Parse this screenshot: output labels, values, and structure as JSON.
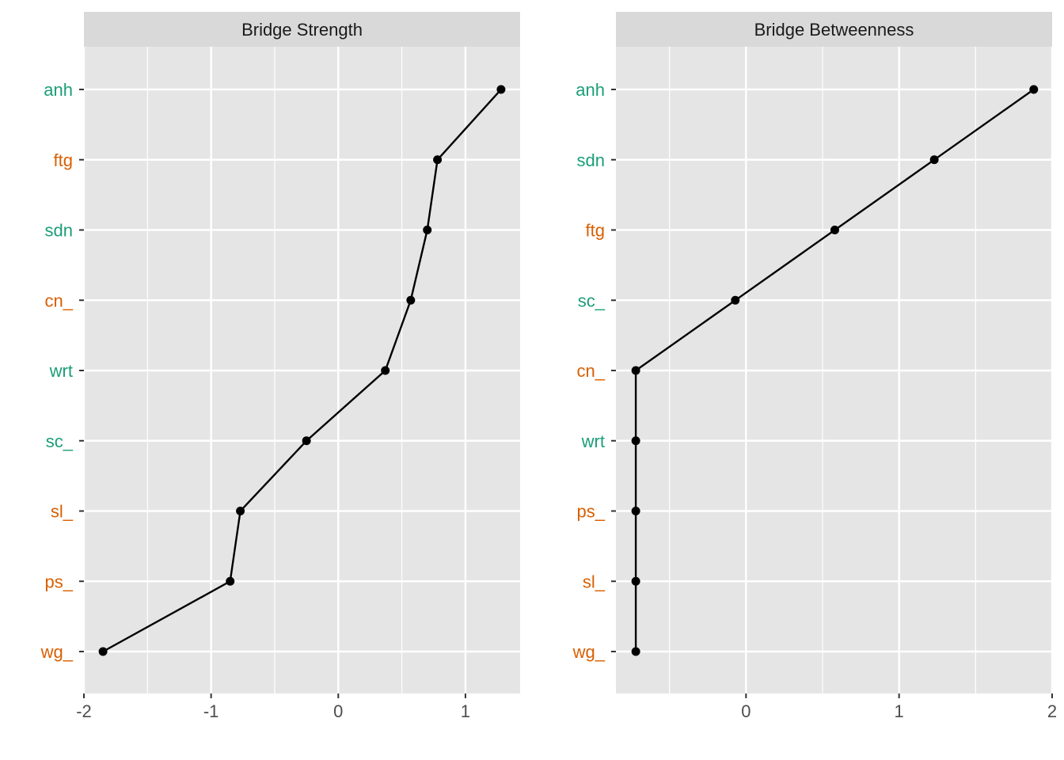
{
  "chart_data": [
    {
      "type": "line",
      "title": "Bridge Strength",
      "categories": [
        "anh",
        "ftg",
        "sdn",
        "cn_",
        "wrt",
        "sc_",
        "sl_",
        "ps_",
        "wg_"
      ],
      "category_colors": [
        "#1b9e77",
        "#d95f02",
        "#1b9e77",
        "#d95f02",
        "#1b9e77",
        "#1b9e77",
        "#d95f02",
        "#d95f02",
        "#d95f02"
      ],
      "values": [
        1.28,
        0.78,
        0.7,
        0.57,
        0.37,
        -0.25,
        -0.77,
        -0.85,
        -1.85
      ],
      "xlim": [
        -2.0,
        1.43
      ],
      "xticks": [
        -2,
        -1,
        0,
        1
      ],
      "xtick_labels": [
        "-2",
        "-1",
        "0",
        "1"
      ],
      "minor_xticks": [
        -1.5,
        -0.5,
        0.5
      ],
      "xlabel": "",
      "ylabel": "",
      "grid": true
    },
    {
      "type": "line",
      "title": "Bridge Betweenness",
      "categories": [
        "anh",
        "sdn",
        "ftg",
        "sc_",
        "cn_",
        "wrt",
        "ps_",
        "sl_",
        "wg_"
      ],
      "category_colors": [
        "#1b9e77",
        "#1b9e77",
        "#d95f02",
        "#1b9e77",
        "#d95f02",
        "#1b9e77",
        "#d95f02",
        "#d95f02",
        "#d95f02"
      ],
      "values": [
        1.88,
        1.23,
        0.58,
        -0.07,
        -0.72,
        -0.72,
        -0.72,
        -0.72,
        -0.72
      ],
      "xlim": [
        -0.85,
        2.0
      ],
      "xticks": [
        0,
        1,
        2
      ],
      "xtick_labels": [
        "0",
        "1",
        "2"
      ],
      "minor_xticks": [
        -0.5,
        0.5,
        1.5
      ],
      "xlabel": "",
      "ylabel": "",
      "grid": true
    }
  ],
  "colors": {
    "panel_bg": "#e5e5e5",
    "strip_bg": "#d9d9d9",
    "grid": "#ffffff",
    "line": "#000000",
    "tick_text": "#4d4d4d",
    "green": "#1b9e77",
    "orange": "#d95f02"
  }
}
